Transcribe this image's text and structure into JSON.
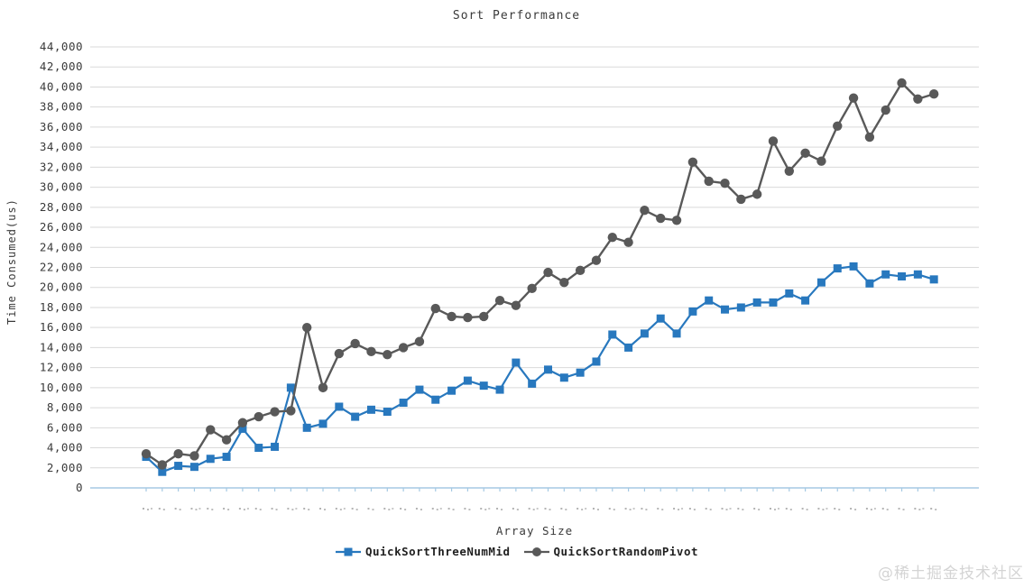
{
  "chart": {
    "title": "Sort Performance",
    "y_axis": {
      "title": "Time Consumed(us)",
      "min": 0,
      "max": 44000,
      "tick_step": 2000,
      "tick_labels": [
        "0",
        "2,000",
        "4,000",
        "6,000",
        "8,000",
        "10,000",
        "12,000",
        "14,000",
        "16,000",
        "18,000",
        "20,000",
        "22,000",
        "24,000",
        "26,000",
        "28,000",
        "30,000",
        "32,000",
        "34,000",
        "36,000",
        "38,000",
        "40,000",
        "42,000",
        "44,000"
      ]
    },
    "x_axis": {
      "title": "Array Size",
      "tick_count": 50,
      "tick_labels_note": "tick labels rendered too small to read (rows of tiny dots)"
    }
  },
  "chart_data": {
    "type": "line",
    "title": "Sort Performance",
    "xlabel": "Array Size",
    "ylabel": "Time Consumed(us)",
    "ylim": [
      0,
      44000
    ],
    "grid": "horizontal",
    "legend_position": "bottom",
    "x": [
      1,
      2,
      3,
      4,
      5,
      6,
      7,
      8,
      9,
      10,
      11,
      12,
      13,
      14,
      15,
      16,
      17,
      18,
      19,
      20,
      21,
      22,
      23,
      24,
      25,
      26,
      27,
      28,
      29,
      30,
      31,
      32,
      33,
      34,
      35,
      36,
      37,
      38,
      39,
      40,
      41,
      42,
      43,
      44,
      45,
      46,
      47,
      48,
      49,
      50
    ],
    "series": [
      {
        "name": "QuickSortThreeNumMid",
        "color": "#2878BE",
        "marker": "square",
        "values": [
          3100,
          1600,
          2200,
          2100,
          2900,
          3100,
          5900,
          4000,
          4100,
          10000,
          6000,
          6400,
          8100,
          7100,
          7800,
          7600,
          8500,
          9800,
          8800,
          9700,
          10700,
          10200,
          9800,
          12500,
          10400,
          11800,
          11000,
          11500,
          12600,
          15300,
          14000,
          15400,
          16900,
          15400,
          17600,
          18700,
          17800,
          18000,
          18500,
          18500,
          19400,
          18700,
          20500,
          21900,
          22100,
          20400,
          21300,
          21100,
          21300,
          20800
        ]
      },
      {
        "name": "QuickSortRandomPivot",
        "color": "#595959",
        "marker": "circle",
        "values": [
          3400,
          2300,
          3400,
          3200,
          5800,
          4800,
          6500,
          7100,
          7600,
          7700,
          16000,
          10000,
          13400,
          14400,
          13600,
          13300,
          14000,
          14600,
          17900,
          17100,
          17000,
          17100,
          18700,
          18200,
          19900,
          21500,
          20500,
          21700,
          22700,
          25000,
          24500,
          27700,
          26900,
          26700,
          32500,
          30600,
          30400,
          28800,
          29300,
          34600,
          31600,
          33400,
          32600,
          36100,
          38900,
          35000,
          37700,
          40400,
          38800,
          39300
        ]
      }
    ]
  },
  "colors": {
    "gridline": "#d9d9d9",
    "axis_line": "#a5c9e3",
    "tick_text": "#3a3a3a",
    "illegible_label_dots": "#9a9a9a",
    "watermark_text": "#d4d4d4"
  },
  "watermark": {
    "text": "@稀土掘金技术社区"
  }
}
